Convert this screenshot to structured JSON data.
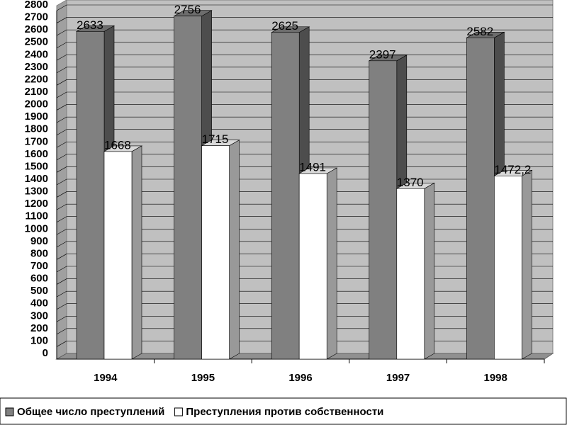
{
  "chart_data": {
    "type": "bar3d",
    "categories": [
      "1994",
      "1995",
      "1996",
      "1997",
      "1998"
    ],
    "series": [
      {
        "name": "Общее число преступлений",
        "color": "#808080",
        "values": [
          2633,
          2756,
          2625,
          2397,
          2582
        ]
      },
      {
        "name": "Преступления против собственности",
        "color": "#ffffff",
        "values": [
          1668,
          1715,
          1491,
          1370,
          1472.2
        ],
        "value_labels": [
          "1668",
          "1715",
          "1491",
          "1370",
          "1472,2"
        ]
      }
    ],
    "ylim": [
      0,
      2800
    ],
    "yticks": [
      0,
      100,
      200,
      300,
      400,
      500,
      600,
      700,
      800,
      900,
      1000,
      1100,
      1200,
      1300,
      1400,
      1500,
      1600,
      1700,
      1800,
      1900,
      2000,
      2100,
      2200,
      2300,
      2400,
      2500,
      2600,
      2700,
      2800
    ],
    "grid": true,
    "legend": "bottom"
  }
}
